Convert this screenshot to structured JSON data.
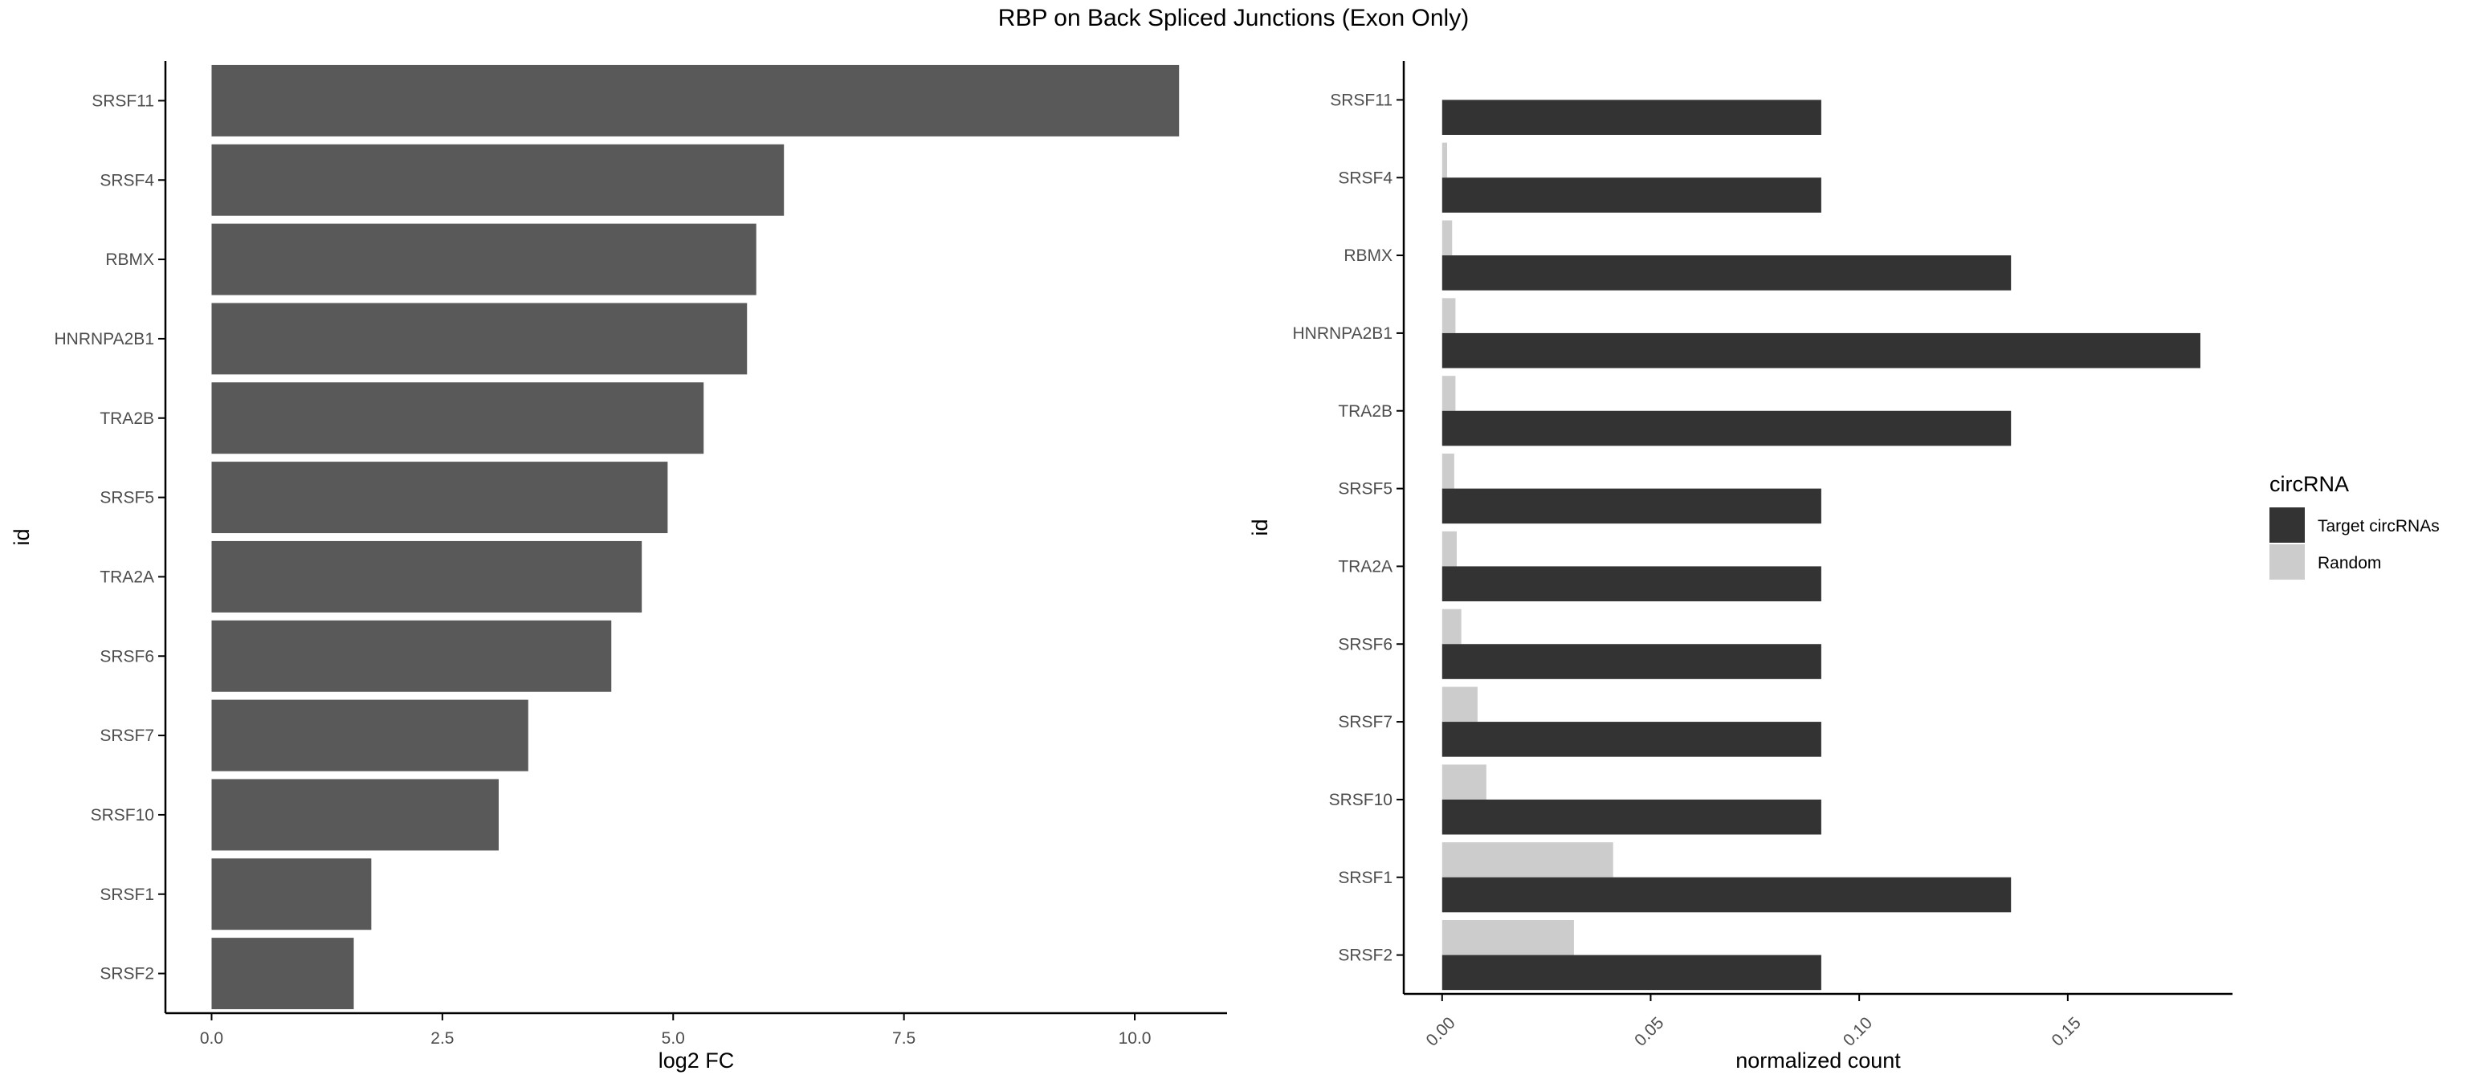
{
  "title": "RBP on Back Spliced Junctions (Exon Only)",
  "colors": {
    "left_bar": "#595959",
    "target": "#333333",
    "random": "#cccccc",
    "axis": "#000000",
    "tick_text": "#4d4d4d"
  },
  "chart_data": [
    {
      "type": "bar",
      "orientation": "horizontal",
      "xlabel": "log2 FC",
      "ylabel": "id",
      "xlim": [
        -0.5,
        11.0
      ],
      "xticks": [
        "0.0",
        "2.5",
        "5.0",
        "7.5",
        "10.0"
      ],
      "categories": [
        "SRSF11",
        "SRSF4",
        "RBMX",
        "HNRNPA2B1",
        "TRA2B",
        "SRSF5",
        "TRA2A",
        "SRSF6",
        "SRSF7",
        "SRSF10",
        "SRSF1",
        "SRSF2"
      ],
      "values": [
        10.48,
        6.2,
        5.9,
        5.8,
        5.33,
        4.94,
        4.66,
        4.33,
        3.43,
        3.11,
        1.73,
        1.54
      ],
      "grid": false
    },
    {
      "type": "bar",
      "orientation": "horizontal",
      "grouped": true,
      "xlabel": "normalized count",
      "ylabel": "id",
      "xlim": [
        -0.0092,
        0.1895
      ],
      "xticks": [
        "0.00",
        "0.05",
        "0.10",
        "0.15"
      ],
      "xtick_rotation": -45,
      "categories": [
        "SRSF11",
        "SRSF4",
        "RBMX",
        "HNRNPA2B1",
        "TRA2B",
        "SRSF5",
        "TRA2A",
        "SRSF6",
        "SRSF7",
        "SRSF10",
        "SRSF1",
        "SRSF2"
      ],
      "legend_title": "circRNA",
      "legend_position": "right",
      "series": [
        {
          "name": "Target circRNAs",
          "values": [
            0.0909,
            0.0909,
            0.1364,
            0.1818,
            0.1364,
            0.0909,
            0.0909,
            0.0909,
            0.0909,
            0.0909,
            0.1364,
            0.0909
          ]
        },
        {
          "name": "Random",
          "values": [
            0.0,
            0.0012,
            0.0024,
            0.0032,
            0.0032,
            0.0029,
            0.0035,
            0.0046,
            0.0085,
            0.0106,
            0.041,
            0.0316
          ]
        }
      ],
      "grid": false
    }
  ]
}
